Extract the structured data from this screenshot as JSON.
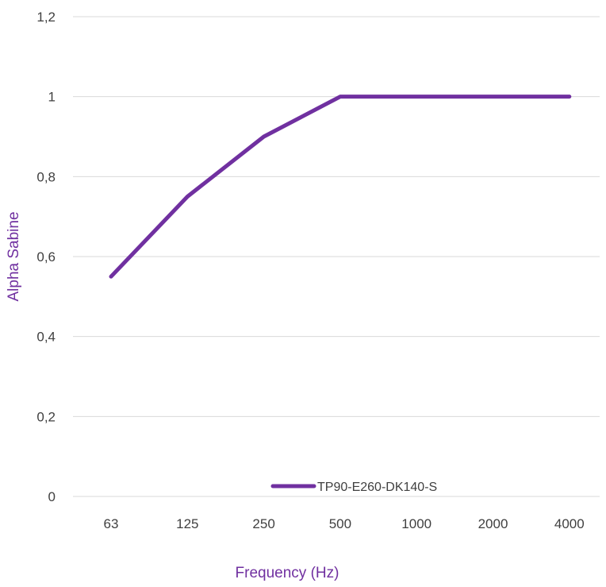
{
  "chart_data": {
    "type": "line",
    "title": "",
    "xlabel": "Frequency (Hz)",
    "ylabel": "Alpha Sabine",
    "categories": [
      "63",
      "125",
      "250",
      "500",
      "1000",
      "2000",
      "4000"
    ],
    "series": [
      {
        "name": "TP90-E260-DK140-S",
        "values": [
          0.55,
          0.75,
          0.9,
          1.0,
          1.0,
          1.0,
          1.0
        ],
        "color": "#7030A0"
      }
    ],
    "ylim": [
      0,
      1.2
    ],
    "yticks": [
      "0",
      "0,2",
      "0,4",
      "0,6",
      "0,8",
      "1",
      "1,2"
    ],
    "grid": true,
    "legend_position": "bottom-center",
    "axis_title_color": "#7030A0",
    "gridline_color": "#d9d9d9"
  }
}
